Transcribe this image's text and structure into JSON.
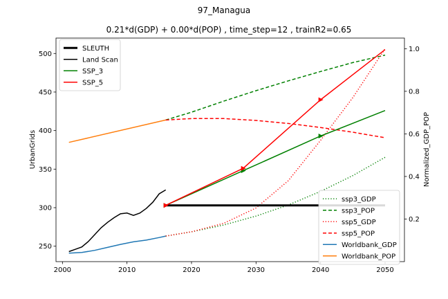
{
  "chart_data": {
    "type": "line",
    "suptitle": "97_Managua",
    "title": "0.21*d(GDP) + 0.00*d(POP) , time_step=12 , trainR2=0.65",
    "xlabel": "",
    "ylabel": "UrbanGrids",
    "ylabel_right": "Normalized_GDP_POP",
    "xlim": [
      1999,
      2053
    ],
    "ylim": [
      230,
      520
    ],
    "ylim_right": [
      0.0,
      1.05
    ],
    "xticks": [
      2000,
      2010,
      2020,
      2030,
      2040,
      2050
    ],
    "yticks": [
      250,
      300,
      350,
      400,
      450,
      500
    ],
    "yticks_right": [
      0.2,
      0.4,
      0.6,
      0.8,
      1.0
    ],
    "legend_left": {
      "placement": "upper-left",
      "entries": [
        {
          "label": "SLEUTH",
          "color": "#000000",
          "style": "solid-thick"
        },
        {
          "label": "Land Scan",
          "color": "#000000",
          "style": "solid"
        },
        {
          "label": "SSP_3",
          "color": "#008000",
          "style": "solid"
        },
        {
          "label": "SSP_5",
          "color": "#ff0000",
          "style": "solid"
        }
      ]
    },
    "legend_right": {
      "placement": "lower-right",
      "entries": [
        {
          "label": "ssp3_GDP",
          "color": "#008000",
          "style": "dotted"
        },
        {
          "label": "ssp3_POP",
          "color": "#008000",
          "style": "dashed"
        },
        {
          "label": "ssp5_GDP",
          "color": "#ff0000",
          "style": "dotted"
        },
        {
          "label": "ssp5_POP",
          "color": "#ff0000",
          "style": "dashed"
        },
        {
          "label": "Worldbank_GDP",
          "color": "#1f77b4",
          "style": "solid"
        },
        {
          "label": "Worldbank_POP",
          "color": "#ff7f0e",
          "style": "solid"
        }
      ]
    },
    "series_left_axis": [
      {
        "name": "SLEUTH",
        "color": "#000000",
        "style": "solid-thick",
        "x": [
          2016,
          2050
        ],
        "y": [
          303,
          303
        ]
      },
      {
        "name": "Land Scan",
        "color": "#000000",
        "style": "solid",
        "x": [
          2001,
          2002,
          2003,
          2004,
          2005,
          2006,
          2007,
          2008,
          2009,
          2010,
          2011,
          2012,
          2013,
          2014,
          2015,
          2016
        ],
        "y": [
          243,
          246,
          249,
          256,
          265,
          274,
          281,
          287,
          292,
          293,
          290,
          293,
          299,
          307,
          318,
          323
        ]
      },
      {
        "name": "SSP_3",
        "color": "#008000",
        "style": "solid",
        "markers": true,
        "x": [
          2016,
          2028,
          2040,
          2050
        ],
        "y": [
          303,
          348,
          393,
          426
        ]
      },
      {
        "name": "SSP_5",
        "color": "#ff0000",
        "style": "solid",
        "markers": true,
        "x": [
          2016,
          2028,
          2040,
          2050
        ],
        "y": [
          303,
          351,
          440,
          505
        ]
      }
    ],
    "series_right_axis": [
      {
        "name": "ssp3_GDP",
        "color": "#008000",
        "style": "dotted",
        "x": [
          2016,
          2020,
          2025,
          2030,
          2035,
          2040,
          2045,
          2050
        ],
        "y": [
          0.12,
          0.14,
          0.172,
          0.214,
          0.266,
          0.33,
          0.404,
          0.49
        ]
      },
      {
        "name": "ssp3_POP",
        "color": "#008000",
        "style": "dashed",
        "x": [
          2016,
          2020,
          2025,
          2030,
          2035,
          2040,
          2045,
          2050
        ],
        "y": [
          0.665,
          0.702,
          0.754,
          0.803,
          0.849,
          0.893,
          0.935,
          0.97
        ]
      },
      {
        "name": "ssp5_GDP",
        "color": "#ff0000",
        "style": "dotted",
        "x": [
          2016,
          2020,
          2025,
          2030,
          2035,
          2040,
          2045,
          2050
        ],
        "y": [
          0.12,
          0.14,
          0.18,
          0.252,
          0.38,
          0.57,
          0.77,
          1.0
        ]
      },
      {
        "name": "ssp5_POP",
        "color": "#ff0000",
        "style": "dashed",
        "x": [
          2016,
          2020,
          2025,
          2030,
          2035,
          2040,
          2045,
          2050
        ],
        "y": [
          0.665,
          0.672,
          0.672,
          0.663,
          0.649,
          0.63,
          0.608,
          0.582
        ]
      },
      {
        "name": "Worldbank_GDP",
        "color": "#1f77b4",
        "style": "solid",
        "x": [
          2001,
          2003,
          2005,
          2007,
          2009,
          2011,
          2013,
          2015,
          2016
        ],
        "y": [
          0.04,
          0.043,
          0.053,
          0.067,
          0.081,
          0.093,
          0.101,
          0.113,
          0.12
        ]
      },
      {
        "name": "Worldbank_POP",
        "color": "#ff7f0e",
        "style": "solid",
        "x": [
          2001,
          2016
        ],
        "y": [
          0.56,
          0.665
        ]
      }
    ]
  }
}
